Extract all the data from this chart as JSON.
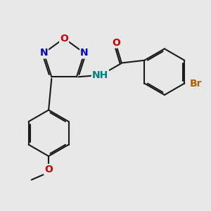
{
  "bg_color": "#e8e8e8",
  "bond_color": "#1a1a1a",
  "N_color": "#0000cc",
  "O_color": "#cc0000",
  "Br_color": "#b36000",
  "NH_color": "#008080",
  "bond_width": 1.5,
  "font_size_atoms": 10,
  "font_size_small": 9,
  "xlim": [
    0.0,
    6.5
  ],
  "ylim": [
    1.5,
    8.5
  ]
}
